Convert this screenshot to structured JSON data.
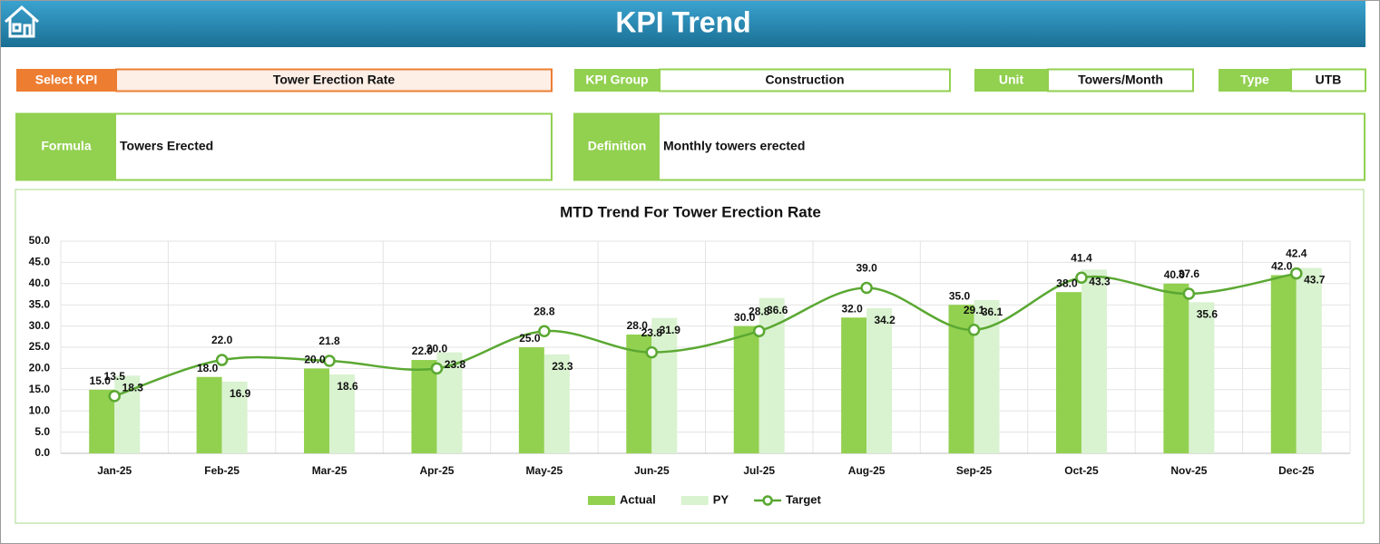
{
  "header": {
    "title": "KPI Trend"
  },
  "fields": [
    {
      "label": "Select KPI",
      "value": "Tower Erection Rate"
    },
    {
      "label": "KPI Group",
      "value": "Construction"
    },
    {
      "label": "Unit",
      "value": "Towers/Month"
    },
    {
      "label": "Type",
      "value": "UTB"
    }
  ],
  "details": [
    {
      "label": "Formula",
      "value": "Towers Erected"
    },
    {
      "label": "Definition",
      "value": "Monthly towers erected"
    }
  ],
  "chart_data": {
    "type": "bar",
    "title": "MTD Trend For Tower Erection Rate",
    "categories": [
      "Jan-25",
      "Feb-25",
      "Mar-25",
      "Apr-25",
      "May-25",
      "Jun-25",
      "Jul-25",
      "Aug-25",
      "Sep-25",
      "Oct-25",
      "Nov-25",
      "Dec-25"
    ],
    "series": [
      {
        "name": "Actual",
        "color": "#92d050",
        "values": [
          15,
          18,
          20,
          22,
          25,
          28,
          30,
          32,
          35,
          38,
          40,
          42
        ],
        "value_labels": [
          "15.0",
          "18.0",
          "20.0",
          "22.0",
          "25.0",
          "28.0",
          "30.0",
          "32.0",
          "35.0",
          "38.0",
          "40.0",
          "42.0"
        ]
      },
      {
        "name": "PY",
        "color": "#d9f2d0",
        "values": [
          18.3,
          16.9,
          18.6,
          23.8,
          23.3,
          31.9,
          36.6,
          34.2,
          36.1,
          43.3,
          35.6,
          43.7
        ]
      },
      {
        "name": "Target",
        "color": "#5aa832",
        "type": "line",
        "smooth": true,
        "values": [
          13.5,
          22,
          21.8,
          20,
          28.8,
          23.8,
          28.8,
          39,
          29.1,
          41.4,
          37.6,
          42.4
        ],
        "value_labels": [
          "13.5",
          "22.0",
          "21.8",
          "20.0",
          "28.8",
          "23.8",
          "28.8",
          "39.0",
          "29.1",
          "41.4",
          "37.6",
          "42.4"
        ]
      }
    ],
    "ylim": [
      0,
      50
    ],
    "yticks": [
      {
        "value": 0,
        "label": "0.0"
      },
      {
        "value": 5,
        "label": "5.0"
      },
      {
        "value": 10,
        "label": "10.0"
      },
      {
        "value": 15,
        "label": "15.0"
      },
      {
        "value": 20,
        "label": "20.0"
      },
      {
        "value": 25,
        "label": "25.0"
      },
      {
        "value": 30,
        "label": "30.0"
      },
      {
        "value": 35,
        "label": "35.0"
      },
      {
        "value": 40,
        "label": "40.0"
      },
      {
        "value": 45,
        "label": "45.0"
      },
      {
        "value": 50,
        "label": "50.0"
      }
    ],
    "grid": true,
    "legend": "bottom"
  }
}
